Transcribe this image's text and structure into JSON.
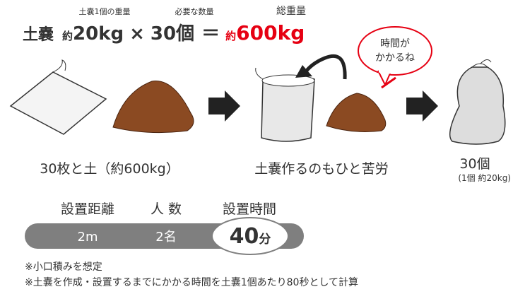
{
  "formula": {
    "labels": {
      "unit_weight": "土嚢1個の重量",
      "quantity": "必要な数量",
      "total": "総重量"
    },
    "item": "土嚢",
    "approx": "約",
    "unit_weight": "20kg",
    "times": "×",
    "quantity": "30個",
    "equals": "＝",
    "total_approx": "約",
    "total": "600kg"
  },
  "bubble": {
    "line1": "時間が",
    "line2": "かかるね"
  },
  "steps": {
    "materials": "30枚と土（約600kg）",
    "making": "土嚢作るのもひと苦労",
    "result": "30個",
    "result_note": "(1個 約20kg)"
  },
  "setup": {
    "headers": [
      "設置距離",
      "人 数",
      "設置時間"
    ],
    "distance": "2m",
    "people": "2名",
    "time": {
      "value": "40",
      "unit": "分"
    }
  },
  "notes": [
    "※小口積みを想定",
    "※土嚢を作成・設置するまでにかかる時間を土嚢1個あたり80秒として計算"
  ]
}
